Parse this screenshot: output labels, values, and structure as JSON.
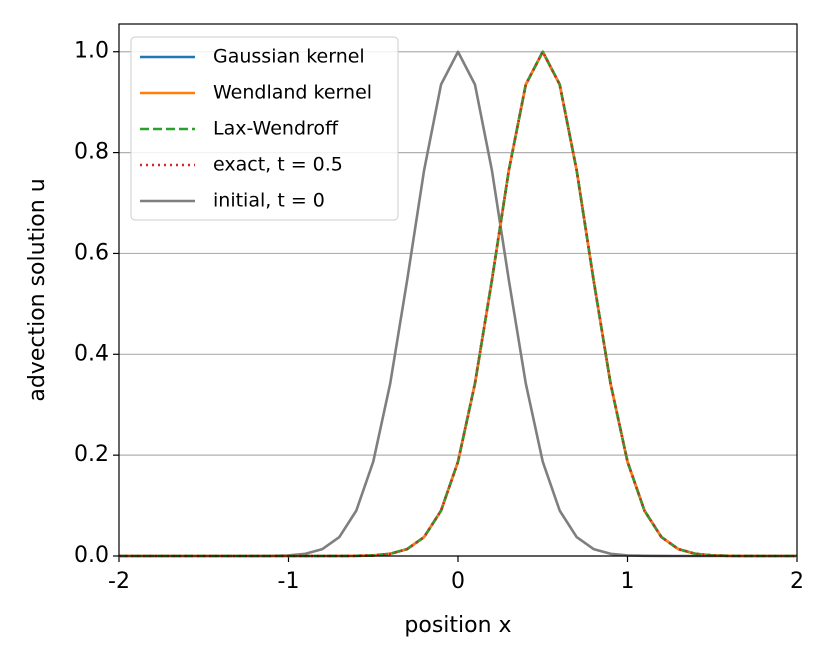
{
  "chart_data": {
    "type": "line",
    "xlabel": "position x",
    "ylabel": "advection solution u",
    "x": [
      -2,
      -1.9,
      -1.8,
      -1.7,
      -1.6,
      -1.5,
      -1.4,
      -1.3,
      -1.2,
      -1.1,
      -1,
      -0.9,
      -0.8,
      -0.7,
      -0.6,
      -0.5,
      -0.4,
      -0.3,
      -0.2,
      -0.1,
      0,
      0.1,
      0.2,
      0.3,
      0.4,
      0.5,
      0.6,
      0.7,
      0.8,
      0.9,
      1,
      1.1,
      1.2,
      1.3,
      1.4,
      1.5,
      1.6,
      1.7,
      1.8,
      1.9,
      2
    ],
    "series": [
      {
        "name": "Gaussian kernel",
        "color": "#1f77b4",
        "linestyle": "solid",
        "values": [
          0,
          0,
          0,
          0,
          0,
          0,
          0,
          0,
          0,
          0,
          0,
          0,
          0,
          0.0001,
          0.0003,
          0.0012,
          0.0044,
          0.0137,
          0.0375,
          0.09,
          0.187,
          0.342,
          0.547,
          0.765,
          0.935,
          1,
          0.935,
          0.765,
          0.547,
          0.342,
          0.187,
          0.09,
          0.0375,
          0.0137,
          0.0044,
          0.0012,
          0.0003,
          0.0001,
          0,
          0,
          0
        ]
      },
      {
        "name": "Wendland kernel",
        "color": "#ff7f0e",
        "linestyle": "solid",
        "values": [
          0,
          0,
          0,
          0,
          0,
          0,
          0,
          0,
          0,
          0,
          0,
          0,
          0,
          0.0001,
          0.0003,
          0.0012,
          0.0044,
          0.0137,
          0.0375,
          0.09,
          0.187,
          0.342,
          0.547,
          0.765,
          0.935,
          1,
          0.935,
          0.765,
          0.547,
          0.342,
          0.187,
          0.09,
          0.0375,
          0.0137,
          0.0044,
          0.0012,
          0.0003,
          0.0001,
          0,
          0,
          0
        ]
      },
      {
        "name": "Lax-Wendroff",
        "color": "#2ca02c",
        "linestyle": "dashed",
        "values": [
          0,
          0,
          0,
          0,
          0,
          0,
          0,
          0,
          0,
          0,
          0,
          0,
          0,
          0.0001,
          0.0003,
          0.0012,
          0.0044,
          0.0137,
          0.0375,
          0.09,
          0.187,
          0.342,
          0.547,
          0.765,
          0.935,
          1,
          0.935,
          0.765,
          0.547,
          0.342,
          0.187,
          0.09,
          0.0375,
          0.0137,
          0.0044,
          0.0012,
          0.0003,
          0.0001,
          0,
          0,
          0
        ]
      },
      {
        "name": "exact, t = 0.5",
        "color": "#d62728",
        "linestyle": "dotted",
        "values": [
          0,
          0,
          0,
          0,
          0,
          0,
          0,
          0,
          0,
          0,
          0,
          0,
          0,
          0.0001,
          0.0003,
          0.0012,
          0.0044,
          0.0137,
          0.0375,
          0.09,
          0.187,
          0.342,
          0.547,
          0.765,
          0.935,
          1,
          0.935,
          0.765,
          0.547,
          0.342,
          0.187,
          0.09,
          0.0375,
          0.0137,
          0.0044,
          0.0012,
          0.0003,
          0.0001,
          0,
          0,
          0
        ]
      },
      {
        "name": "initial, t = 0",
        "color": "#7f7f7f",
        "linestyle": "solid",
        "values": [
          0,
          0,
          0,
          0,
          0,
          0,
          0,
          0,
          0.0001,
          0.0003,
          0.0012,
          0.0044,
          0.0137,
          0.0375,
          0.09,
          0.187,
          0.342,
          0.547,
          0.765,
          0.935,
          1,
          0.935,
          0.765,
          0.547,
          0.342,
          0.187,
          0.09,
          0.0375,
          0.0137,
          0.0044,
          0.0012,
          0.0003,
          0.0001,
          0,
          0,
          0,
          0,
          0,
          0,
          0,
          0
        ]
      }
    ],
    "xlim": [
      -2,
      2
    ],
    "xticks": [
      -2,
      -1,
      0,
      1,
      2
    ],
    "ylim": [
      0,
      1.055
    ],
    "yticks": [
      {
        "value": 0,
        "label": "0.0"
      },
      {
        "value": 0.2,
        "label": "0.2"
      },
      {
        "value": 0.4,
        "label": "0.4"
      },
      {
        "value": 0.6,
        "label": "0.6"
      },
      {
        "value": 0.8,
        "label": "0.8"
      },
      {
        "value": 1,
        "label": "1.0"
      }
    ],
    "grid": "y",
    "legend": "upper left"
  }
}
